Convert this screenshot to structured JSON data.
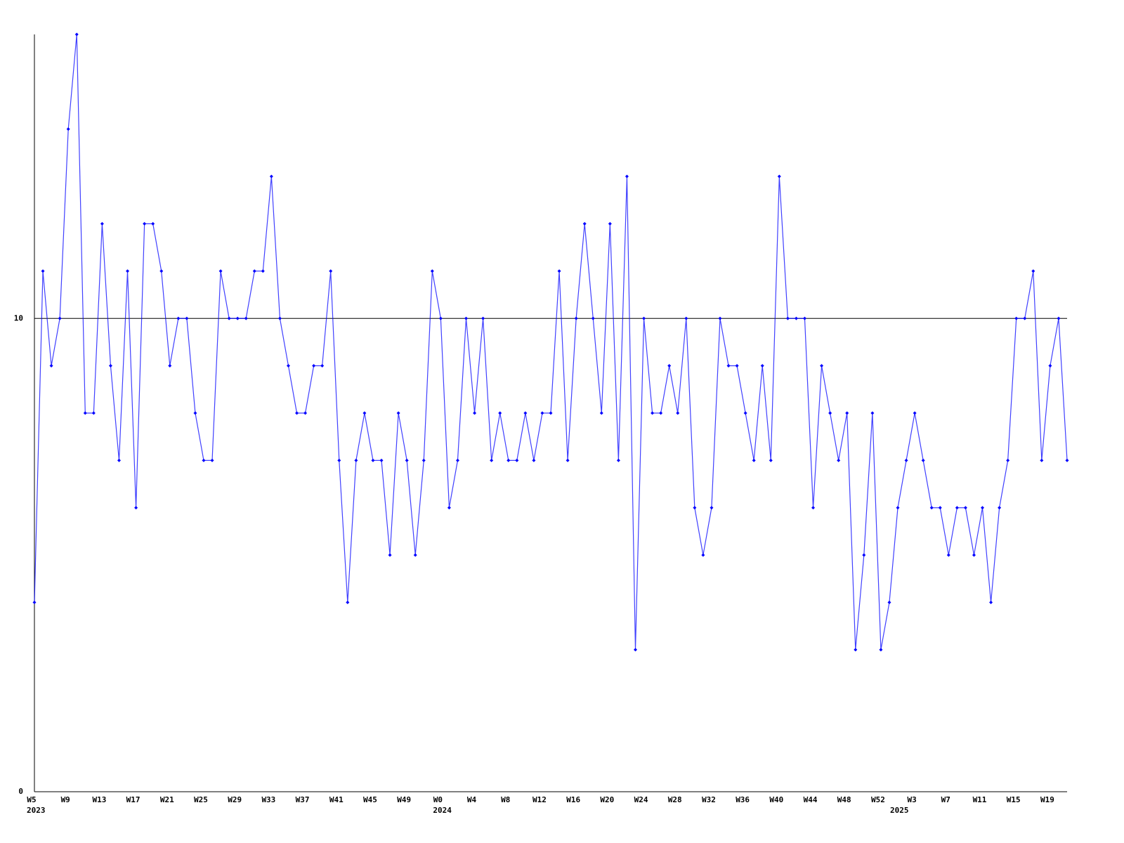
{
  "chart_data": {
    "type": "line",
    "categories": [
      "W5",
      null,
      null,
      null,
      "W9",
      null,
      null,
      null,
      "W13",
      null,
      null,
      null,
      "W17",
      null,
      null,
      null,
      "W21",
      null,
      null,
      null,
      "W25",
      null,
      null,
      null,
      "W29",
      null,
      null,
      null,
      "W33",
      null,
      null,
      null,
      "W37",
      null,
      null,
      null,
      "W41",
      null,
      null,
      null,
      "W45",
      null,
      null,
      null,
      "W49",
      null,
      null,
      null,
      "W0",
      null,
      null,
      null,
      "W4",
      null,
      null,
      null,
      "W8",
      null,
      null,
      null,
      "W12",
      null,
      null,
      null,
      "W16",
      null,
      null,
      null,
      "W20",
      null,
      null,
      null,
      "W24",
      null,
      null,
      null,
      "W28",
      null,
      null,
      null,
      "W32",
      null,
      null,
      null,
      "W36",
      null,
      null,
      null,
      "W40",
      null,
      null,
      null,
      "W44",
      null,
      null,
      null,
      "W48",
      null,
      null,
      null,
      "W52",
      null,
      null,
      null,
      "W3",
      null,
      null,
      null,
      "W7",
      null,
      null,
      null,
      "W11",
      null,
      null,
      null,
      "W15",
      null,
      null,
      null,
      "W19",
      null,
      null
    ],
    "year_labels": [
      "2023",
      null,
      null,
      null,
      null,
      null,
      null,
      null,
      null,
      null,
      null,
      null,
      null,
      null,
      null,
      null,
      null,
      null,
      null,
      null,
      null,
      null,
      null,
      null,
      null,
      null,
      null,
      null,
      null,
      null,
      null,
      null,
      null,
      null,
      null,
      null,
      null,
      null,
      null,
      null,
      null,
      null,
      null,
      null,
      null,
      null,
      null,
      null,
      "2024",
      null,
      null,
      null,
      null,
      null,
      null,
      null,
      null,
      null,
      null,
      null,
      null,
      null,
      null,
      null,
      null,
      null,
      null,
      null,
      null,
      null,
      null,
      null,
      null,
      null,
      null,
      null,
      null,
      null,
      null,
      null,
      null,
      null,
      null,
      null,
      null,
      null,
      null,
      null,
      null,
      null,
      null,
      null,
      null,
      null,
      null,
      null,
      null,
      null,
      null,
      null,
      null,
      null,
      "2025",
      null,
      null,
      null,
      null,
      null,
      null,
      null,
      null,
      null,
      null,
      null,
      null,
      null,
      null,
      null,
      null,
      null,
      null,
      null,
      null,
      null
    ],
    "values": [
      4,
      11,
      9,
      10,
      14,
      16,
      8,
      8,
      12,
      9,
      7,
      11,
      6,
      12,
      12,
      11,
      9,
      10,
      10,
      8,
      7,
      7,
      11,
      10,
      10,
      10,
      11,
      11,
      13,
      10,
      9,
      8,
      8,
      9,
      9,
      11,
      7,
      4,
      7,
      8,
      7,
      7,
      5,
      8,
      7,
      5,
      7,
      11,
      10,
      6,
      7,
      10,
      8,
      10,
      7,
      8,
      7,
      7,
      8,
      7,
      8,
      8,
      11,
      7,
      10,
      12,
      10,
      8,
      12,
      7,
      13,
      3,
      10,
      8,
      8,
      9,
      8,
      10,
      6,
      5,
      6,
      10,
      9,
      9,
      8,
      7,
      9,
      7,
      13,
      10,
      10,
      10,
      6,
      9,
      8,
      7,
      8,
      3,
      5,
      8,
      3,
      4,
      6,
      7,
      8,
      7,
      6,
      6,
      5,
      6,
      6,
      5,
      6,
      4,
      6,
      7,
      10,
      10,
      11,
      7,
      9,
      10,
      7
    ],
    "color": "#0000ff",
    "ylim": [
      0,
      16
    ],
    "yticks": [
      0,
      10
    ],
    "grid": true
  }
}
